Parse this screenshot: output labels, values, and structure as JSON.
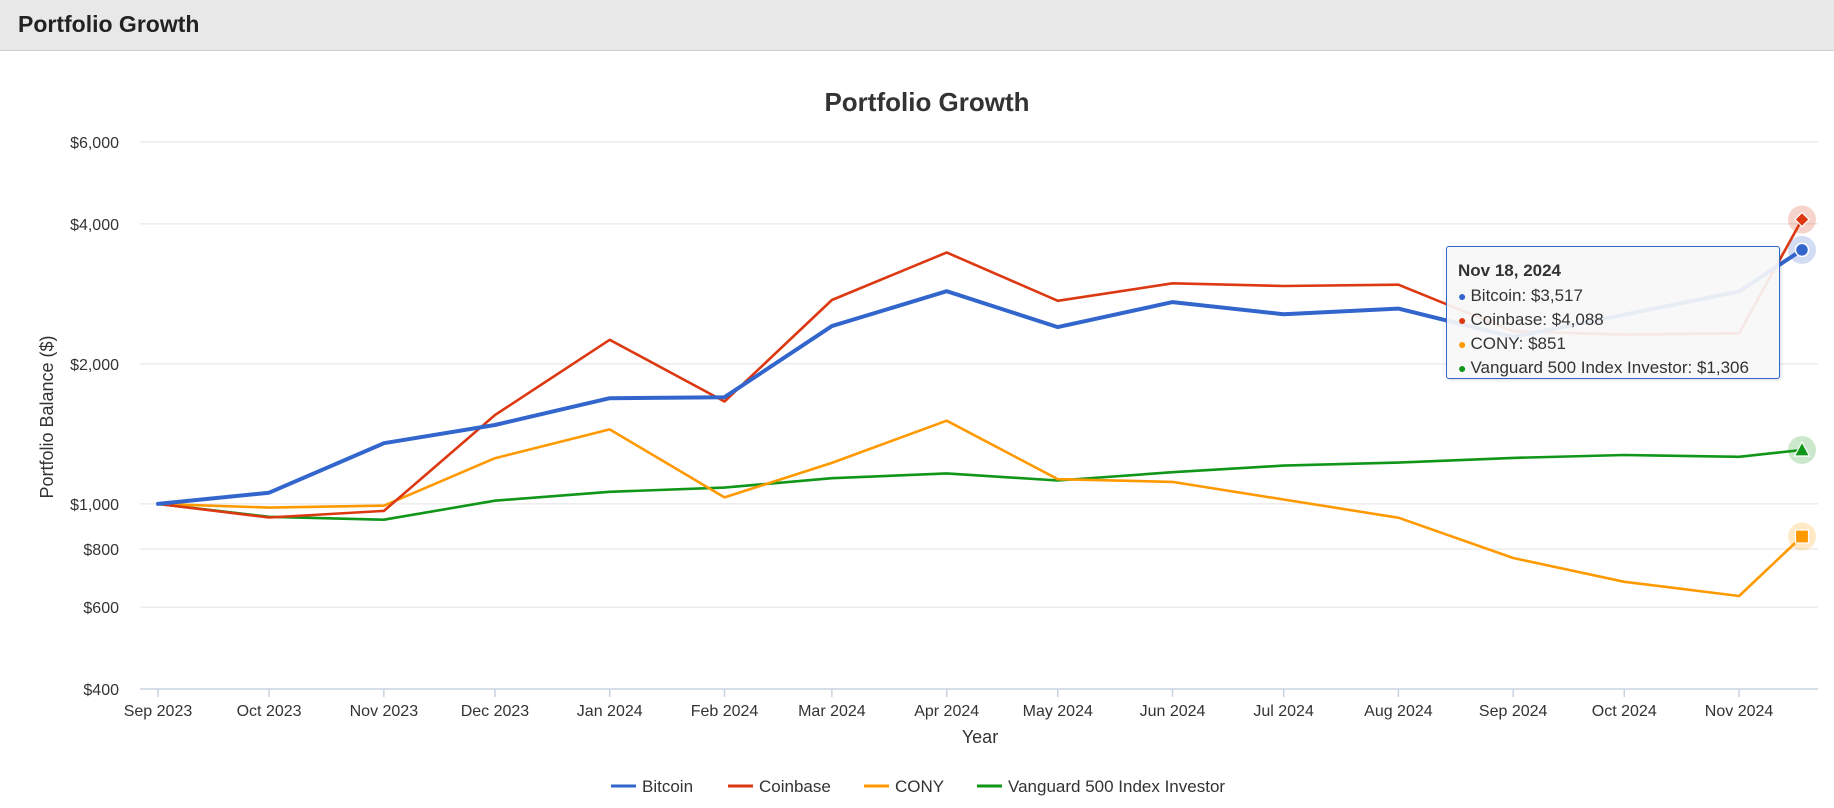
{
  "header": {
    "title": "Portfolio Growth"
  },
  "chart_data": {
    "type": "line",
    "title": "Portfolio Growth",
    "xlabel": "Year",
    "ylabel": "Portfolio Balance ($)",
    "y_scale": "log",
    "ylim": [
      400,
      6000
    ],
    "y_ticks": [
      400,
      600,
      800,
      1000,
      2000,
      4000,
      6000
    ],
    "y_tick_labels": [
      "$400",
      "$600",
      "$800",
      "$1,000",
      "$2,000",
      "$4,000",
      "$6,000"
    ],
    "x": [
      "2023-09-01",
      "2023-10-01",
      "2023-11-01",
      "2023-12-01",
      "2024-01-01",
      "2024-02-01",
      "2024-03-01",
      "2024-04-01",
      "2024-05-01",
      "2024-06-01",
      "2024-07-01",
      "2024-08-01",
      "2024-09-01",
      "2024-10-01",
      "2024-11-01",
      "2024-11-18"
    ],
    "x_tick_labels": [
      "Sep 2023",
      "Oct 2023",
      "Nov 2023",
      "Dec 2023",
      "Jan 2024",
      "Feb 2024",
      "Mar 2024",
      "Apr 2024",
      "May 2024",
      "Jun 2024",
      "Jul 2024",
      "Aug 2024",
      "Sep 2024",
      "Oct 2024",
      "Nov 2024"
    ],
    "grid": true,
    "legend_position": "bottom",
    "series": [
      {
        "name": "Bitcoin",
        "color": "#3366cc",
        "marker": "circle",
        "values": [
          1000,
          1057,
          1351,
          1478,
          1688,
          1696,
          2412,
          2866,
          2400,
          2716,
          2558,
          2630,
          2285,
          2552,
          2862,
          3517
        ]
      },
      {
        "name": "Coinbase",
        "color": "#dc3912",
        "marker": "diamond",
        "values": [
          1000,
          935,
          966,
          1552,
          2254,
          1660,
          2744,
          3472,
          2733,
          2981,
          2941,
          2961,
          2350,
          2312,
          2328,
          4088
        ]
      },
      {
        "name": "CONY",
        "color": "#ff9900",
        "marker": "square",
        "values": [
          1000,
          982,
          991,
          1254,
          1446,
          1033,
          1225,
          1510,
          1130,
          1115,
          1022,
          934,
          765,
          680,
          634,
          851
        ]
      },
      {
        "name": "Vanguard 500 Index Investor",
        "color": "#109618",
        "marker": "triangle",
        "values": [
          1000,
          938,
          925,
          1016,
          1062,
          1084,
          1136,
          1163,
          1123,
          1170,
          1209,
          1227,
          1256,
          1274,
          1263,
          1306
        ]
      }
    ],
    "tooltip": {
      "date": "Nov 18, 2024",
      "rows": [
        "Bitcoin: $3,517",
        "Coinbase: $4,088",
        "CONY: $851",
        "Vanguard 500 Index Investor: $1,306"
      ]
    }
  }
}
